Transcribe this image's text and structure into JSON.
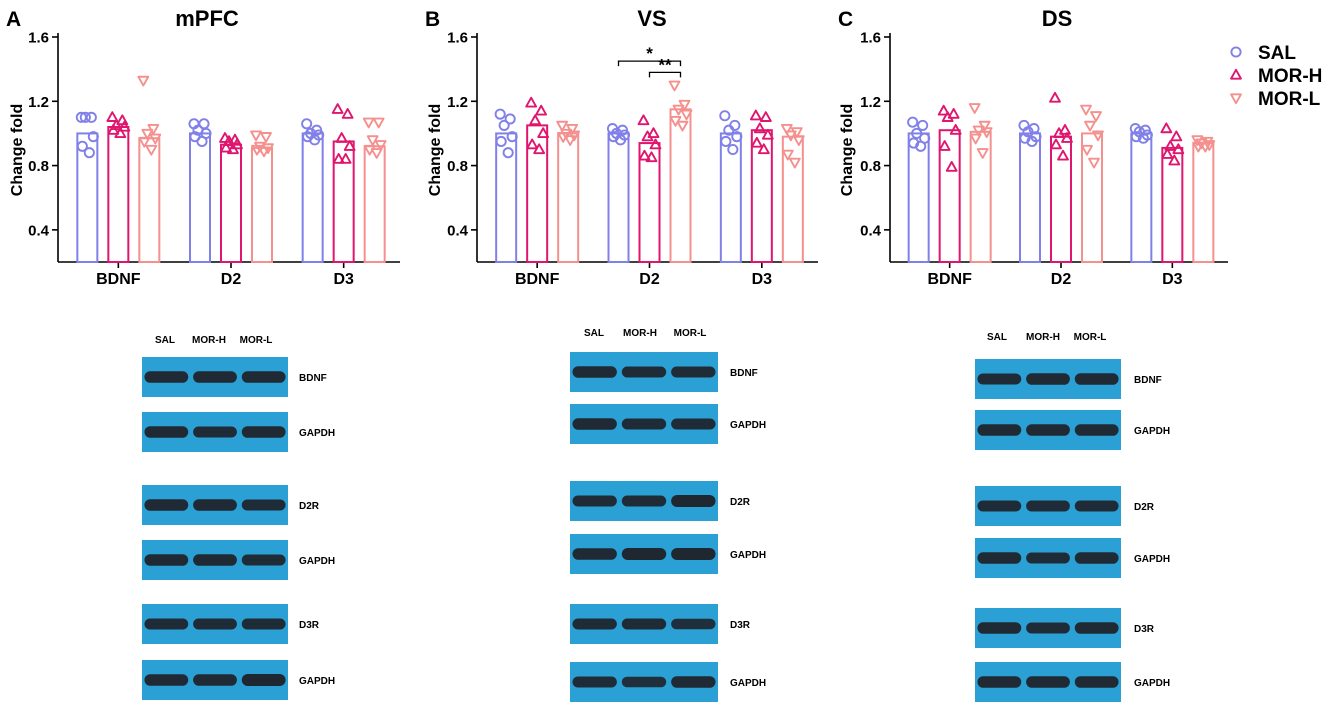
{
  "colors": {
    "SAL": "#8080e8",
    "MOR-H": "#e0156e",
    "MOR-L": "#f4908e",
    "blot_bg": "#2aa0d4",
    "band": "#1f2730",
    "axis": "#000000"
  },
  "legend": {
    "items": [
      {
        "label": "SAL",
        "marker": "circle",
        "color_key": "SAL"
      },
      {
        "label": "MOR-H",
        "marker": "triangle-up",
        "color_key": "MOR-H"
      },
      {
        "label": "MOR-L",
        "marker": "triangle-down",
        "color_key": "MOR-L"
      }
    ]
  },
  "chart_data": [
    {
      "type": "bar",
      "panel_letter": "A",
      "title": "mPFC",
      "xlabel": "",
      "ylabel": "Change fold",
      "ylim": [
        0.2,
        1.6
      ],
      "yticks": [
        "0.4",
        "0.8",
        "1.2",
        "1.6"
      ],
      "ytick_values": [
        0.4,
        0.8,
        1.2,
        1.6
      ],
      "categories": [
        "BDNF",
        "D2",
        "D3"
      ],
      "series": [
        {
          "name": "SAL",
          "values": [
            1.0,
            1.0,
            1.0
          ],
          "points": [
            [
              1.1,
              1.1,
              1.1,
              0.98,
              0.92,
              0.88
            ],
            [
              1.06,
              1.06,
              1.02,
              1.0,
              0.98,
              0.95
            ],
            [
              1.06,
              1.02,
              1.0,
              0.99,
              0.98,
              0.96
            ]
          ]
        },
        {
          "name": "MOR-H",
          "values": [
            1.04,
            0.93,
            0.95
          ],
          "points": [
            [
              1.1,
              1.08,
              1.05,
              1.04,
              1.02,
              1.0
            ],
            [
              0.97,
              0.96,
              0.95,
              0.93,
              0.91,
              0.9
            ],
            [
              1.15,
              1.12,
              0.97,
              0.92,
              0.84,
              0.84
            ]
          ]
        },
        {
          "name": "MOR-L",
          "values": [
            0.97,
            0.91,
            0.92
          ],
          "points": [
            [
              1.33,
              1.03,
              1.0,
              0.97,
              0.95,
              0.9
            ],
            [
              0.99,
              0.98,
              0.92,
              0.91,
              0.9,
              0.89
            ],
            [
              1.07,
              1.07,
              0.96,
              0.93,
              0.9,
              0.88
            ]
          ]
        }
      ],
      "significance": []
    },
    {
      "type": "bar",
      "panel_letter": "B",
      "title": "VS",
      "xlabel": "",
      "ylabel": "Change fold",
      "ylim": [
        0.2,
        1.6
      ],
      "yticks": [
        "0.4",
        "0.8",
        "1.2",
        "1.6"
      ],
      "ytick_values": [
        0.4,
        0.8,
        1.2,
        1.6
      ],
      "categories": [
        "BDNF",
        "D2",
        "D3"
      ],
      "series": [
        {
          "name": "SAL",
          "values": [
            1.0,
            1.0,
            1.0
          ],
          "points": [
            [
              1.12,
              1.09,
              1.05,
              0.98,
              0.95,
              0.88
            ],
            [
              1.03,
              1.02,
              1.0,
              0.99,
              0.98,
              0.96
            ],
            [
              1.11,
              1.05,
              1.02,
              0.98,
              0.95,
              0.9
            ]
          ]
        },
        {
          "name": "MOR-H",
          "values": [
            1.05,
            0.94,
            1.02
          ],
          "points": [
            [
              1.19,
              1.14,
              1.08,
              1.0,
              0.93,
              0.9
            ],
            [
              1.08,
              1.0,
              0.98,
              0.93,
              0.86,
              0.85
            ],
            [
              1.11,
              1.1,
              1.03,
              0.99,
              0.94,
              0.9
            ]
          ]
        },
        {
          "name": "MOR-L",
          "values": [
            1.0,
            1.15,
            0.98
          ],
          "points": [
            [
              1.05,
              1.03,
              1.0,
              0.99,
              0.98,
              0.96
            ],
            [
              1.3,
              1.18,
              1.15,
              1.12,
              1.08,
              1.05
            ],
            [
              1.03,
              1.01,
              0.99,
              0.96,
              0.87,
              0.82
            ]
          ]
        }
      ],
      "significance": [
        {
          "category": "D2",
          "from": "SAL",
          "to": "MOR-L",
          "label": "*",
          "level": 1.45
        },
        {
          "category": "D2",
          "from": "MOR-H",
          "to": "MOR-L",
          "label": "**",
          "level": 1.38
        }
      ]
    },
    {
      "type": "bar",
      "panel_letter": "C",
      "title": "DS",
      "xlabel": "",
      "ylabel": "Change fold",
      "ylim": [
        0.2,
        1.6
      ],
      "yticks": [
        "0.4",
        "0.8",
        "1.2",
        "1.6"
      ],
      "ytick_values": [
        0.4,
        0.8,
        1.2,
        1.6
      ],
      "categories": [
        "BDNF",
        "D2",
        "D3"
      ],
      "series": [
        {
          "name": "SAL",
          "values": [
            1.0,
            1.0,
            1.0
          ],
          "points": [
            [
              1.07,
              1.05,
              1.0,
              0.97,
              0.94,
              0.92
            ],
            [
              1.05,
              1.03,
              1.01,
              0.98,
              0.97,
              0.95
            ],
            [
              1.03,
              1.02,
              1.01,
              0.99,
              0.98,
              0.97
            ]
          ]
        },
        {
          "name": "MOR-H",
          "values": [
            1.02,
            0.98,
            0.91
          ],
          "points": [
            [
              1.14,
              1.12,
              1.1,
              1.02,
              0.92,
              0.79
            ],
            [
              1.22,
              1.02,
              1.0,
              0.97,
              0.93,
              0.86
            ],
            [
              1.03,
              0.98,
              0.92,
              0.9,
              0.87,
              0.83
            ]
          ]
        },
        {
          "name": "MOR-L",
          "values": [
            1.01,
            1.0,
            0.94
          ],
          "points": [
            [
              1.16,
              1.05,
              1.02,
              1.01,
              0.97,
              0.88
            ],
            [
              1.15,
              1.11,
              1.05,
              0.99,
              0.9,
              0.82
            ],
            [
              0.96,
              0.95,
              0.94,
              0.93,
              0.92,
              0.92
            ]
          ]
        }
      ],
      "significance": []
    }
  ],
  "blots": [
    {
      "lane_labels": [
        "SAL",
        "MOR-H",
        "MOR-L"
      ],
      "rows": [
        {
          "label": "BDNF",
          "intensities": [
            0.95,
            0.95,
            0.95
          ]
        },
        {
          "label": "GAPDH",
          "intensities": [
            0.95,
            0.9,
            0.95
          ]
        },
        {
          "label": "D2R",
          "intensities": [
            0.95,
            0.95,
            0.9
          ]
        },
        {
          "label": "GAPDH",
          "intensities": [
            0.95,
            0.95,
            0.9
          ]
        },
        {
          "label": "D3R",
          "intensities": [
            0.9,
            0.9,
            0.9
          ]
        },
        {
          "label": "GAPDH",
          "intensities": [
            0.95,
            0.95,
            1.0
          ]
        }
      ]
    },
    {
      "lane_labels": [
        "SAL",
        "MOR-H",
        "MOR-L"
      ],
      "rows": [
        {
          "label": "BDNF",
          "intensities": [
            0.95,
            0.9,
            0.9
          ]
        },
        {
          "label": "GAPDH",
          "intensities": [
            0.95,
            0.9,
            0.9
          ]
        },
        {
          "label": "D2R",
          "intensities": [
            0.9,
            0.9,
            1.0
          ]
        },
        {
          "label": "GAPDH",
          "intensities": [
            0.95,
            1.0,
            1.0
          ]
        },
        {
          "label": "D3R",
          "intensities": [
            0.9,
            0.9,
            0.85
          ]
        },
        {
          "label": "GAPDH",
          "intensities": [
            0.9,
            0.85,
            0.95
          ]
        }
      ]
    },
    {
      "lane_labels": [
        "SAL",
        "MOR-H",
        "MOR-L"
      ],
      "rows": [
        {
          "label": "BDNF",
          "intensities": [
            0.9,
            0.95,
            0.95
          ]
        },
        {
          "label": "GAPDH",
          "intensities": [
            0.95,
            0.95,
            0.95
          ]
        },
        {
          "label": "D2R",
          "intensities": [
            0.9,
            0.9,
            0.9
          ]
        },
        {
          "label": "GAPDH",
          "intensities": [
            0.95,
            0.9,
            0.95
          ]
        },
        {
          "label": "D3R",
          "intensities": [
            0.95,
            0.9,
            0.95
          ]
        },
        {
          "label": "GAPDH",
          "intensities": [
            0.95,
            0.95,
            0.95
          ]
        }
      ]
    }
  ]
}
